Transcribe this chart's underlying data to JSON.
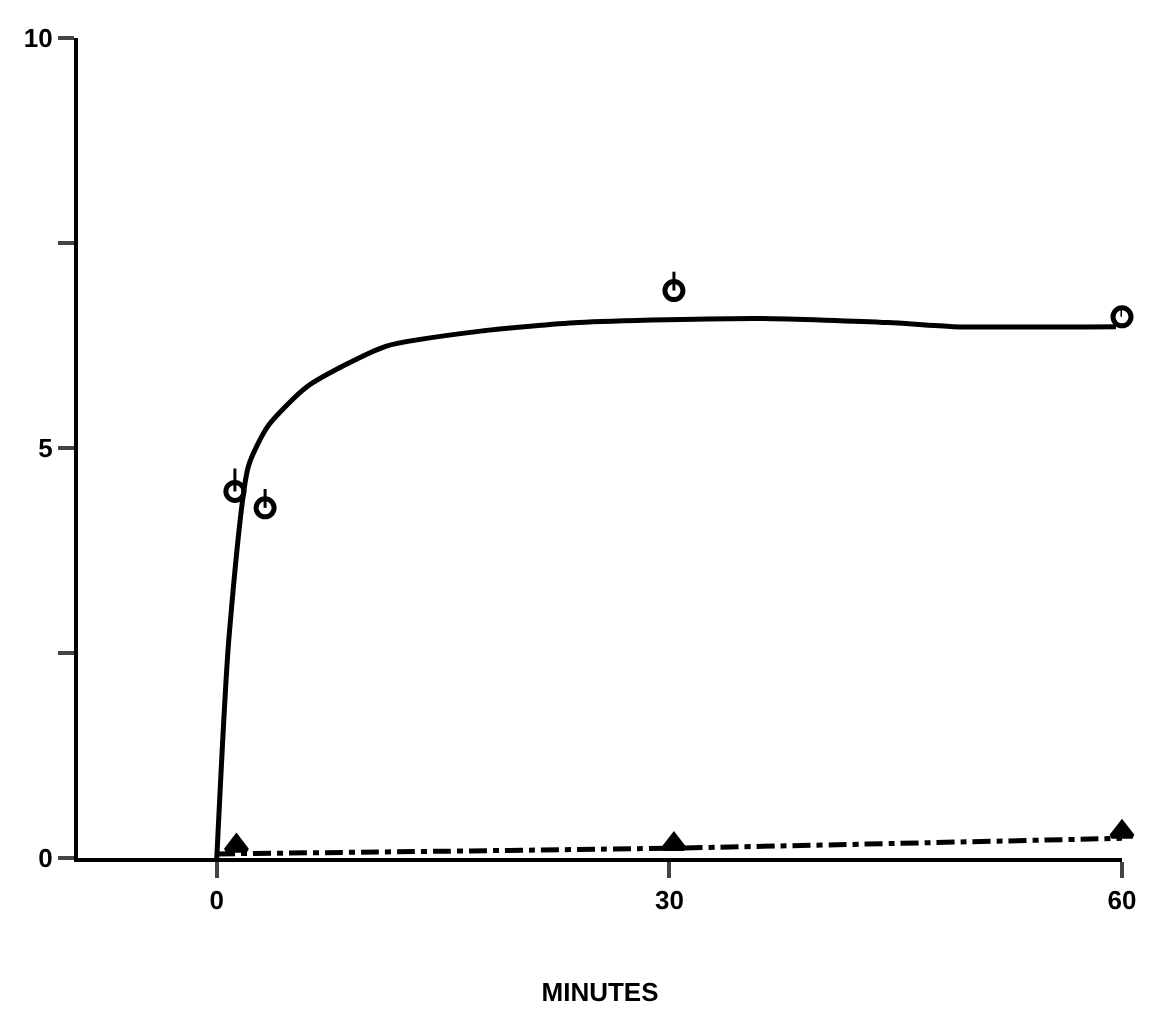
{
  "chart_data": {
    "type": "scatter",
    "xlabel": "MINUTES",
    "xlim": [
      -9.2,
      60
    ],
    "xticks": [
      0,
      30,
      60
    ],
    "ylim": [
      0,
      10
    ],
    "yticks": [
      0,
      {
        "value": 2.5,
        "label": null
      },
      5,
      {
        "value": 7.5,
        "label": null
      },
      10
    ],
    "series": [
      {
        "marker": "circle",
        "color": "#000000",
        "x": [
          1.2,
          3.2,
          30.3,
          60
        ],
        "values": [
          4.47,
          4.27,
          6.92,
          6.6
        ],
        "errors": [
          [
            4.47,
            4.75
          ],
          [
            4.27,
            4.5
          ],
          [
            6.92,
            7.15
          ],
          [
            6.6,
            6.7
          ]
        ]
      },
      {
        "marker": "triangle",
        "color": "#000000",
        "x": [
          1.3,
          30.3,
          60
        ],
        "values": [
          0.15,
          0.17,
          0.32
        ]
      },
      {
        "type": "line",
        "line_style": "solid",
        "color": "#000000",
        "x": [
          0,
          0.8,
          2.1,
          3.4,
          6,
          11.2,
          17.7,
          24,
          35.8,
          44.5,
          48.8,
          59.6
        ],
        "values": [
          0,
          2.67,
          4.78,
          5.27,
          5.75,
          6.24,
          6.43,
          6.53,
          6.58,
          6.53,
          6.48,
          6.48
        ]
      },
      {
        "type": "line",
        "line_style": "dashed",
        "color": "#000000",
        "x": [
          0,
          30,
          60
        ],
        "values": [
          0.05,
          0.12,
          0.24
        ]
      }
    ]
  }
}
